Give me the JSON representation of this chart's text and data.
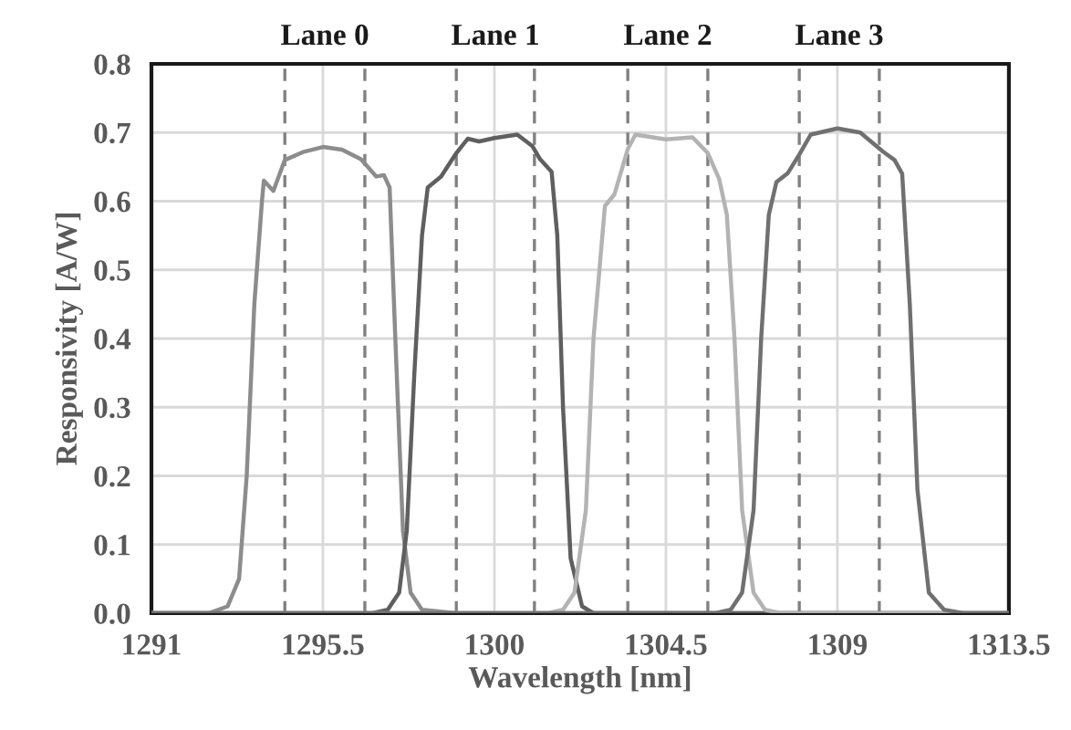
{
  "chart_data": {
    "type": "line",
    "xlabel": "Wavelength [nm]",
    "ylabel": "Responsivity [A/W]",
    "xlim": [
      1291,
      1313.5
    ],
    "xticks": [
      1291,
      1295.5,
      1300,
      1304.5,
      1309,
      1313.5
    ],
    "ylim": [
      0,
      0.8
    ],
    "yticks": [
      {
        "value": 0,
        "label": "0.0"
      },
      0.1,
      0.2,
      0.3,
      0.4,
      0.5,
      0.6,
      0.7,
      0.8
    ],
    "grid": true,
    "marker": "none",
    "line_style": "solid",
    "series": [
      {
        "color": "#8c8c8c",
        "x": [
          1291,
          1292.5,
          1293.0,
          1293.3,
          1293.5,
          1293.7,
          1293.9,
          1293.95,
          1294.2,
          1294.5,
          1295,
          1295.5,
          1296,
          1296.5,
          1296.9,
          1297.1,
          1297.25,
          1297.4,
          1297.6,
          1297.8,
          1298.1,
          1299,
          1313.5
        ],
        "values": [
          0,
          0,
          0.01,
          0.05,
          0.2,
          0.45,
          0.6,
          0.63,
          0.615,
          0.66,
          0.672,
          0.679,
          0.675,
          0.661,
          0.636,
          0.638,
          0.62,
          0.4,
          0.12,
          0.03,
          0.005,
          0,
          0
        ]
      },
      {
        "color": "#5f5f5f",
        "x": [
          1291,
          1296.8,
          1297.2,
          1297.5,
          1297.7,
          1297.9,
          1298.1,
          1298.25,
          1298.6,
          1299,
          1299.3,
          1299.6,
          1300,
          1300.6,
          1301,
          1301.2,
          1301.5,
          1301.65,
          1301.8,
          1302.0,
          1302.3,
          1302.6,
          1313.5
        ],
        "values": [
          0,
          0,
          0.005,
          0.03,
          0.12,
          0.35,
          0.55,
          0.62,
          0.636,
          0.67,
          0.691,
          0.687,
          0.692,
          0.697,
          0.68,
          0.661,
          0.643,
          0.55,
          0.3,
          0.08,
          0.01,
          0,
          0
        ]
      },
      {
        "color": "#b3b3b3",
        "x": [
          1291,
          1301.4,
          1301.8,
          1302.1,
          1302.4,
          1302.6,
          1302.9,
          1303.15,
          1303.5,
          1303.7,
          1304.5,
          1305.2,
          1305.6,
          1305.9,
          1306.1,
          1306.3,
          1306.5,
          1306.8,
          1307.1,
          1307.5,
          1313.5
        ],
        "values": [
          0,
          0,
          0.005,
          0.03,
          0.15,
          0.4,
          0.593,
          0.61,
          0.676,
          0.697,
          0.69,
          0.693,
          0.67,
          0.632,
          0.58,
          0.4,
          0.15,
          0.03,
          0.005,
          0,
          0
        ]
      },
      {
        "color": "#707070",
        "x": [
          1291,
          1305.8,
          1306.2,
          1306.5,
          1306.8,
          1307.0,
          1307.2,
          1307.4,
          1307.7,
          1308,
          1308.3,
          1309,
          1309.6,
          1310.2,
          1310.5,
          1310.7,
          1310.9,
          1311.1,
          1311.4,
          1311.8,
          1312.3,
          1313.5
        ],
        "values": [
          0,
          0,
          0.005,
          0.03,
          0.15,
          0.4,
          0.58,
          0.628,
          0.641,
          0.668,
          0.697,
          0.706,
          0.7,
          0.672,
          0.66,
          0.64,
          0.45,
          0.18,
          0.03,
          0.005,
          0,
          0
        ]
      }
    ],
    "ref_lines": [
      {
        "axis": "x",
        "value": 1294.5,
        "color": "#808080",
        "line_style": "dashed"
      },
      {
        "axis": "x",
        "value": 1296.6,
        "color": "#808080",
        "line_style": "dashed"
      },
      {
        "axis": "x",
        "value": 1299.0,
        "color": "#808080",
        "line_style": "dashed"
      },
      {
        "axis": "x",
        "value": 1301.05,
        "color": "#808080",
        "line_style": "dashed"
      },
      {
        "axis": "x",
        "value": 1303.5,
        "color": "#808080",
        "line_style": "dashed"
      },
      {
        "axis": "x",
        "value": 1305.6,
        "color": "#808080",
        "line_style": "dashed"
      },
      {
        "axis": "x",
        "value": 1308.0,
        "color": "#808080",
        "line_style": "dashed"
      },
      {
        "axis": "x",
        "value": 1310.1,
        "color": "#808080",
        "line_style": "dashed"
      }
    ],
    "annotations": [
      "Lane 0",
      "Lane 1",
      "Lane 2",
      "Lane 3"
    ]
  }
}
